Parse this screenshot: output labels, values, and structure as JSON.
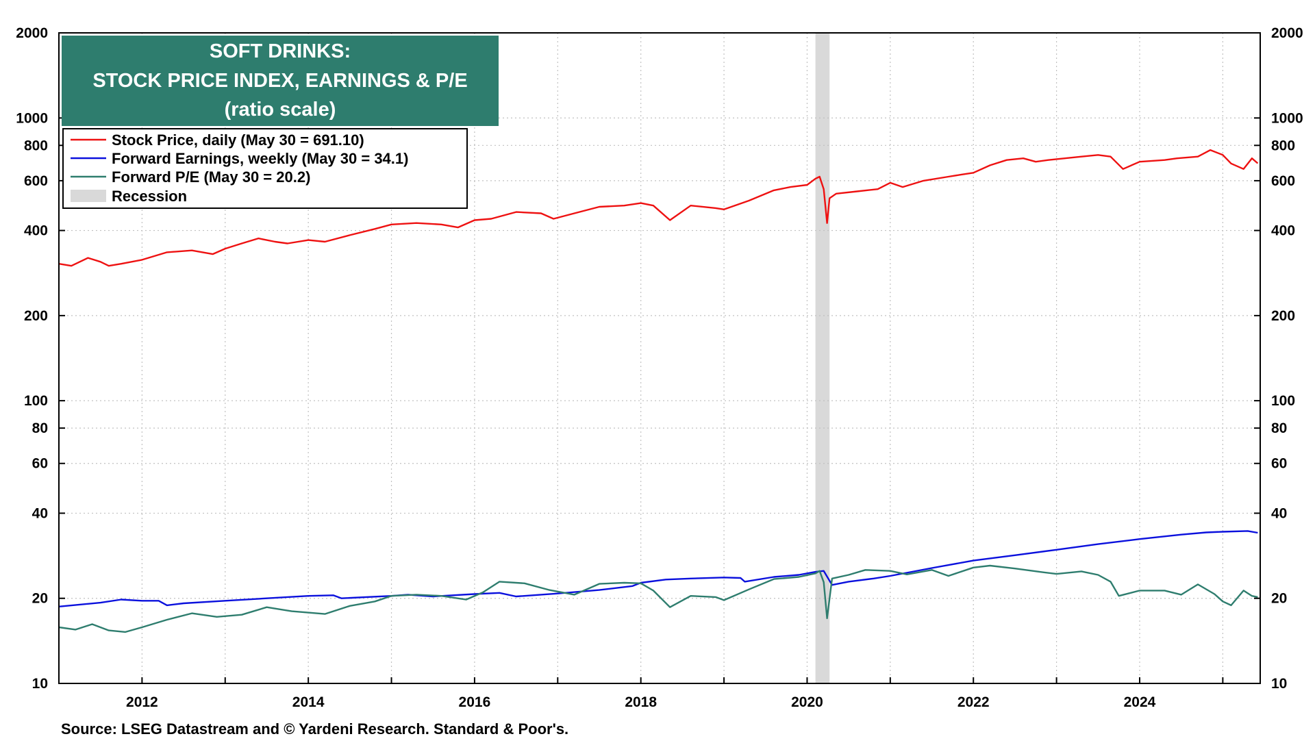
{
  "chart_data": {
    "type": "line",
    "title_lines": [
      "SOFT DRINKS:",
      "STOCK PRICE INDEX, EARNINGS & P/E",
      "(ratio scale)"
    ],
    "y_scale": "log",
    "ylim": [
      10,
      2000
    ],
    "y_ticks": [
      {
        "value": 2000,
        "label": "2000"
      },
      {
        "value": 1000,
        "label": "1000"
      },
      {
        "value": 800,
        "label": "800"
      },
      {
        "value": 600,
        "label": "600"
      },
      {
        "value": 400,
        "label": "400"
      },
      {
        "value": 200,
        "label": "200"
      },
      {
        "value": 100,
        "label": "100"
      },
      {
        "value": 80,
        "label": "80"
      },
      {
        "value": 60,
        "label": "60"
      },
      {
        "value": 40,
        "label": "40"
      },
      {
        "value": 20,
        "label": "20"
      },
      {
        "value": 10,
        "label": "10"
      }
    ],
    "xlim": [
      2011.0,
      2025.45
    ],
    "x_ticks": [
      {
        "value": 2012,
        "label": "2012"
      },
      {
        "value": 2014,
        "label": "2014"
      },
      {
        "value": 2016,
        "label": "2016"
      },
      {
        "value": 2018,
        "label": "2018"
      },
      {
        "value": 2020,
        "label": "2020"
      },
      {
        "value": 2022,
        "label": "2022"
      },
      {
        "value": 2024,
        "label": "2024"
      }
    ],
    "grid": true,
    "legend_position": "top-left",
    "recession": {
      "label": "Recession",
      "start": 2020.1,
      "end": 2020.27,
      "color": "#d9d9d9"
    },
    "series": [
      {
        "name": "Stock Price, daily (May 30 = 691.10)",
        "color": "#ee1111",
        "x": [
          2011.0,
          2011.15,
          2011.35,
          2011.5,
          2011.6,
          2011.75,
          2012.0,
          2012.3,
          2012.6,
          2012.85,
          2013.0,
          2013.2,
          2013.4,
          2013.6,
          2013.75,
          2014.0,
          2014.2,
          2014.5,
          2014.8,
          2015.0,
          2015.3,
          2015.6,
          2015.8,
          2016.0,
          2016.2,
          2016.5,
          2016.8,
          2016.95,
          2017.2,
          2017.5,
          2017.8,
          2018.0,
          2018.15,
          2018.35,
          2018.6,
          2018.9,
          2019.0,
          2019.3,
          2019.6,
          2019.8,
          2020.0,
          2020.1,
          2020.15,
          2020.2,
          2020.24,
          2020.27,
          2020.35,
          2020.6,
          2020.85,
          2021.0,
          2021.15,
          2021.4,
          2021.7,
          2021.85,
          2022.0,
          2022.2,
          2022.4,
          2022.6,
          2022.75,
          2022.9,
          2023.1,
          2023.3,
          2023.5,
          2023.65,
          2023.8,
          2024.0,
          2024.3,
          2024.45,
          2024.7,
          2024.85,
          2025.0,
          2025.1,
          2025.25,
          2025.35,
          2025.42
        ],
        "values": [
          305,
          300,
          320,
          310,
          300,
          305,
          315,
          335,
          340,
          330,
          345,
          360,
          375,
          365,
          360,
          370,
          365,
          385,
          405,
          420,
          425,
          420,
          410,
          435,
          440,
          465,
          460,
          440,
          460,
          485,
          490,
          500,
          490,
          435,
          490,
          480,
          475,
          510,
          555,
          570,
          580,
          610,
          620,
          560,
          425,
          520,
          540,
          550,
          560,
          590,
          570,
          600,
          620,
          630,
          640,
          680,
          710,
          720,
          700,
          710,
          720,
          730,
          740,
          730,
          660,
          700,
          710,
          720,
          730,
          770,
          740,
          690,
          660,
          720,
          691.1
        ]
      },
      {
        "name": "Forward Earnings, weekly (May 30 = 34.1)",
        "color": "#0a10dd",
        "x": [
          2011.0,
          2011.5,
          2011.75,
          2012.0,
          2012.2,
          2012.3,
          2012.5,
          2013.0,
          2013.5,
          2014.0,
          2014.3,
          2014.4,
          2015.0,
          2015.2,
          2015.5,
          2016.0,
          2016.3,
          2016.5,
          2017.0,
          2017.5,
          2017.9,
          2018.0,
          2018.3,
          2018.6,
          2019.0,
          2019.2,
          2019.25,
          2019.6,
          2019.9,
          2020.1,
          2020.2,
          2020.3,
          2020.5,
          2020.8,
          2021.0,
          2021.5,
          2022.0,
          2022.5,
          2023.0,
          2023.5,
          2024.0,
          2024.5,
          2024.8,
          2025.0,
          2025.3,
          2025.42
        ],
        "values": [
          18.7,
          19.3,
          19.8,
          19.6,
          19.6,
          18.9,
          19.2,
          19.6,
          20.0,
          20.4,
          20.5,
          20.0,
          20.4,
          20.6,
          20.3,
          20.7,
          20.9,
          20.3,
          20.8,
          21.4,
          22.1,
          22.7,
          23.3,
          23.5,
          23.7,
          23.6,
          22.9,
          23.8,
          24.2,
          24.8,
          25.0,
          22.3,
          22.9,
          23.5,
          24.0,
          25.6,
          27.2,
          28.4,
          29.7,
          31.1,
          32.4,
          33.6,
          34.2,
          34.4,
          34.6,
          34.1
        ]
      },
      {
        "name": "Forward P/E (May 30 = 20.2)",
        "color": "#2e7d6e",
        "x": [
          2011.0,
          2011.2,
          2011.4,
          2011.6,
          2011.8,
          2012.0,
          2012.3,
          2012.6,
          2012.9,
          2013.2,
          2013.5,
          2013.8,
          2014.0,
          2014.2,
          2014.5,
          2014.8,
          2015.0,
          2015.3,
          2015.6,
          2015.9,
          2016.1,
          2016.3,
          2016.6,
          2016.9,
          2017.2,
          2017.5,
          2017.8,
          2018.0,
          2018.15,
          2018.35,
          2018.6,
          2018.9,
          2019.0,
          2019.3,
          2019.6,
          2019.9,
          2020.1,
          2020.15,
          2020.2,
          2020.24,
          2020.3,
          2020.5,
          2020.7,
          2021.0,
          2021.2,
          2021.5,
          2021.7,
          2022.0,
          2022.2,
          2022.5,
          2022.8,
          2023.0,
          2023.3,
          2023.5,
          2023.65,
          2023.75,
          2024.0,
          2024.3,
          2024.5,
          2024.7,
          2024.9,
          2025.0,
          2025.1,
          2025.25,
          2025.35,
          2025.42
        ],
        "values": [
          15.8,
          15.5,
          16.2,
          15.4,
          15.2,
          15.8,
          16.8,
          17.7,
          17.2,
          17.5,
          18.6,
          18.0,
          17.8,
          17.6,
          18.8,
          19.5,
          20.4,
          20.6,
          20.4,
          19.8,
          21.0,
          22.9,
          22.6,
          21.4,
          20.6,
          22.5,
          22.7,
          22.6,
          21.3,
          18.6,
          20.4,
          20.2,
          19.7,
          21.5,
          23.4,
          23.8,
          24.5,
          25.0,
          22.8,
          17.0,
          23.5,
          24.2,
          25.2,
          25.0,
          24.3,
          25.2,
          24.0,
          25.7,
          26.1,
          25.5,
          24.8,
          24.4,
          24.9,
          24.2,
          22.9,
          20.4,
          21.3,
          21.3,
          20.6,
          22.4,
          20.7,
          19.5,
          18.9,
          21.3,
          20.4,
          20.2
        ]
      }
    ],
    "legend_entries": [
      {
        "label": "Stock Price, daily (May 30 = 691.10)",
        "color": "#ee1111",
        "kind": "line"
      },
      {
        "label": "Forward Earnings, weekly (May 30 = 34.1)",
        "color": "#0a10dd",
        "kind": "line"
      },
      {
        "label": "Forward P/E (May 30 = 20.2)",
        "color": "#2e7d6e",
        "kind": "line"
      },
      {
        "label": "Recession",
        "color": "#d9d9d9",
        "kind": "box"
      }
    ],
    "source": "Source: LSEG Datastream and © Yardeni Research. Standard & Poor's."
  },
  "colors": {
    "title_bg": "#2e7d6e",
    "grid": "#c0c0c0",
    "axis": "#000000"
  }
}
